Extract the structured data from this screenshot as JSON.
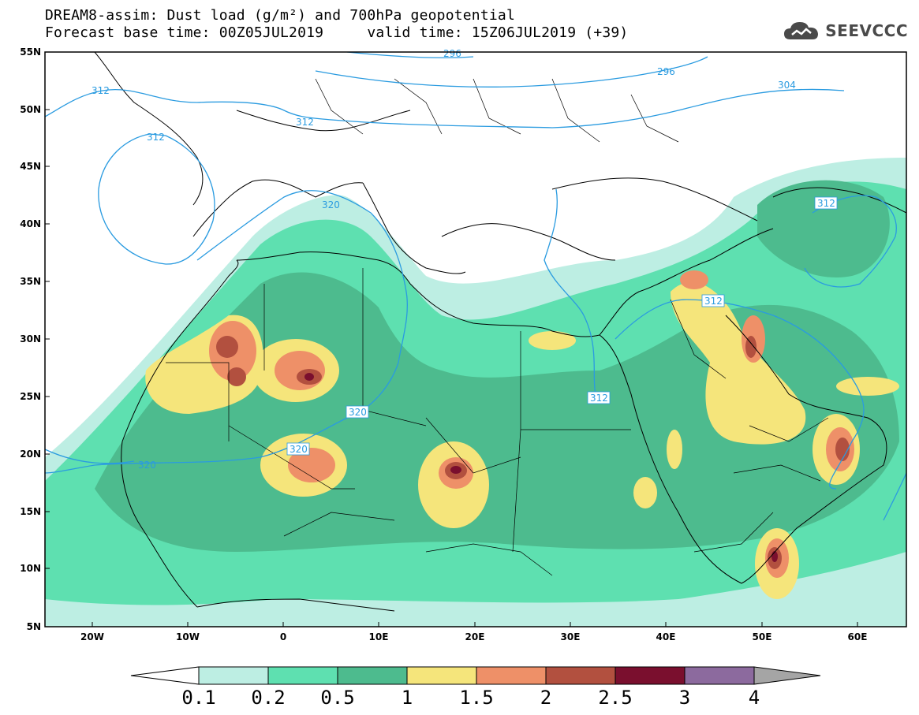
{
  "header": {
    "title_line1": "DREAM8-assim: Dust load (g/m²) and 700hPa geopotential",
    "title_line2": "Forecast base time: 00Z05JUL2019     valid time: 15Z06JUL2019 (+39)",
    "brand": "SEEVCCC",
    "brand_icon": "cloud-logo-icon"
  },
  "map": {
    "lat_labels": [
      "55N",
      "50N",
      "45N",
      "40N",
      "35N",
      "30N",
      "25N",
      "20N",
      "15N",
      "10N",
      "5N"
    ],
    "lon_labels": [
      "20W",
      "10W",
      "0",
      "10E",
      "20E",
      "30E",
      "40E",
      "50E",
      "60E"
    ],
    "contour_labels": [
      "312",
      "312",
      "312",
      "296",
      "304",
      "296",
      "320",
      "320",
      "320",
      "320",
      "312",
      "312",
      "312"
    ],
    "contour_color": "#2a9be0"
  },
  "colorbar": {
    "ticks": [
      "0.1",
      "0.2",
      "0.5",
      "1",
      "1.5",
      "2",
      "2.5",
      "3",
      "4"
    ],
    "colors": [
      "#ffffff",
      "#bdeee3",
      "#5ee0b0",
      "#4dbb8e",
      "#f5e57b",
      "#ee9068",
      "#b2503f",
      "#7a0f2e",
      "#8c6a9e",
      "#a5a5a5"
    ]
  }
}
